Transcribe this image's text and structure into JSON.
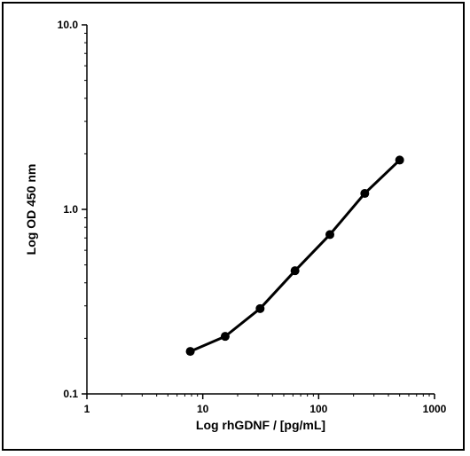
{
  "chart_data": {
    "type": "line",
    "title": "",
    "xlabel": "Log rhGDNF / [pg/mL]",
    "ylabel": "Log OD 450 nm",
    "xscale": "log",
    "yscale": "log",
    "xlim": [
      1,
      1000
    ],
    "ylim": [
      0.1,
      10.0
    ],
    "x_ticks": [
      1,
      10,
      100,
      1000
    ],
    "x_tick_labels": [
      "1",
      "10",
      "100",
      "1000"
    ],
    "y_ticks": [
      0.1,
      1.0,
      10.0
    ],
    "y_tick_labels": [
      "0.1",
      "1.0",
      "10.0"
    ],
    "grid": false,
    "legend": "none",
    "line_color": "#000000",
    "marker": "circle",
    "series": [
      {
        "x": [
          7.8,
          15.6,
          31.25,
          62.5,
          125,
          250,
          500
        ],
        "y": [
          0.17,
          0.205,
          0.29,
          0.465,
          0.73,
          1.22,
          1.85
        ]
      }
    ]
  }
}
